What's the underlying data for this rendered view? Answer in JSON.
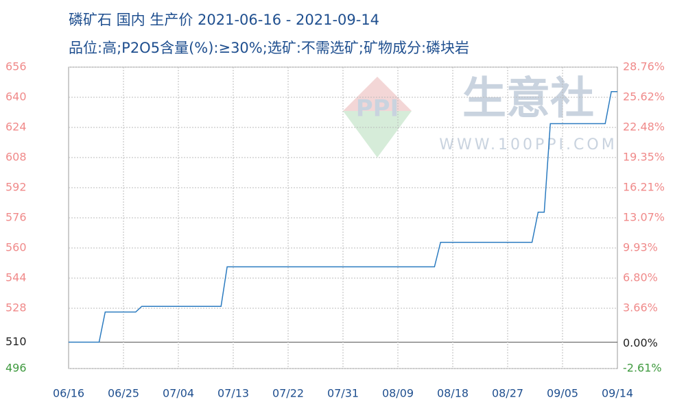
{
  "chart_data": {
    "type": "line",
    "title": "磷矿石 国内 生产价 2021-06-16 - 2021-09-14",
    "subtitle": "品位:高;P2O5含量(%):≥30%;选矿:不需选矿;矿物成分:磷块岩",
    "watermark": {
      "logo": "PPI",
      "name": "生意社",
      "url": "WWW.100PPI.COM"
    },
    "x": [
      "06/16",
      "06/21",
      "06/22",
      "06/27",
      "06/28",
      "07/11",
      "07/12",
      "08/15",
      "08/16",
      "08/31",
      "09/01",
      "09/02",
      "09/03",
      "09/12",
      "09/13",
      "09/14"
    ],
    "series": [
      {
        "name": "磷矿石",
        "color": "#2b7bc0",
        "values": [
          510,
          510,
          526,
          526,
          529,
          529,
          550,
          550,
          563,
          563,
          579,
          579,
          626,
          626,
          643,
          643
        ]
      }
    ],
    "xticks": [
      "06/16",
      "06/25",
      "07/04",
      "07/13",
      "07/22",
      "07/31",
      "08/09",
      "08/18",
      "08/27",
      "09/05",
      "09/14"
    ],
    "ylim": [
      496,
      656
    ],
    "yticks": [
      496,
      510,
      528,
      544,
      560,
      576,
      592,
      608,
      624,
      640,
      656
    ],
    "y2lim": [
      -2.61,
      28.76
    ],
    "y2ticks": [
      {
        "value": -2.61,
        "label": "-2.61%"
      },
      {
        "value": 0,
        "label": "0.00%"
      },
      {
        "value": 3.66,
        "label": "3.66%"
      },
      {
        "value": 6.8,
        "label": "6.80%"
      },
      {
        "value": 9.93,
        "label": "9.93%"
      },
      {
        "value": 13.07,
        "label": "13.07%"
      },
      {
        "value": 16.21,
        "label": "16.21%"
      },
      {
        "value": 19.35,
        "label": "19.35%"
      },
      {
        "value": 22.48,
        "label": "22.48%"
      },
      {
        "value": 25.62,
        "label": "25.62%"
      },
      {
        "value": 28.76,
        "label": "28.76%"
      }
    ],
    "tick_colors": {
      "above": "#f08a8a",
      "zero": "#222222",
      "below": "#3f9a3f"
    },
    "grid": true
  }
}
